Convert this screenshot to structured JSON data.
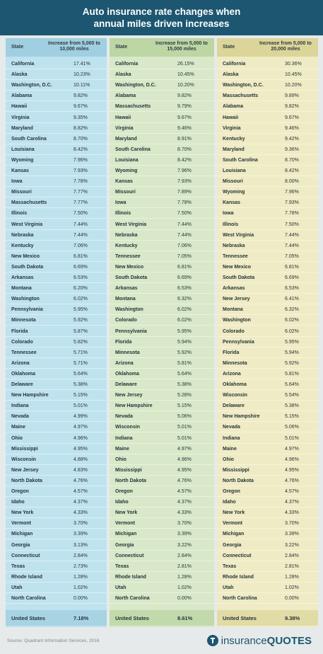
{
  "header": {
    "title_line1": "Auto insurance rate changes when",
    "title_line2": "annual miles driven increases"
  },
  "tables": [
    {
      "header": [
        "State",
        "Increase from 5,000 to 10,000 miles"
      ],
      "rows": [
        [
          "California",
          "17.41%"
        ],
        [
          "Alaska",
          "10.23%"
        ],
        [
          "Washington, D.C.",
          "10.11%"
        ],
        [
          "Alabama",
          "9.82%"
        ],
        [
          "Hawaii",
          "9.67%"
        ],
        [
          "Virginia",
          "9.35%"
        ],
        [
          "Maryland",
          "8.82%"
        ],
        [
          "South Carolina",
          "8.70%"
        ],
        [
          "Louisiana",
          "8.42%"
        ],
        [
          "Wyoming",
          "7.96%"
        ],
        [
          "Kansas",
          "7.93%"
        ],
        [
          "Iowa",
          "7.78%"
        ],
        [
          "Missouri",
          "7.77%"
        ],
        [
          "Massachusetts",
          "7.77%"
        ],
        [
          "Illinois",
          "7.50%"
        ],
        [
          "West Virginia",
          "7.44%"
        ],
        [
          "Nebraska",
          "7.44%"
        ],
        [
          "Kentucky",
          "7.06%"
        ],
        [
          "New Mexico",
          "6.81%"
        ],
        [
          "South Dakota",
          "6.69%"
        ],
        [
          "Arkansas",
          "6.53%"
        ],
        [
          "Montana",
          "6.20%"
        ],
        [
          "Washington",
          "6.02%"
        ],
        [
          "Pennsylvania",
          "5.95%"
        ],
        [
          "Minnesota",
          "5.92%"
        ],
        [
          "Florida",
          "5.87%"
        ],
        [
          "Colorado",
          "5.82%"
        ],
        [
          "Tennessee",
          "5.71%"
        ],
        [
          "Arizona",
          "5.71%"
        ],
        [
          "Oklahoma",
          "5.64%"
        ],
        [
          "Delaware",
          "5.38%"
        ],
        [
          "New Hampshire",
          "5.15%"
        ],
        [
          "Indiana",
          "5.01%"
        ],
        [
          "Nevada",
          "4.99%"
        ],
        [
          "Maine",
          "4.97%"
        ],
        [
          "Ohio",
          "4.96%"
        ],
        [
          "Mississippi",
          "4.95%"
        ],
        [
          "Wisconsin",
          "4.88%"
        ],
        [
          "New Jersey",
          "4.83%"
        ],
        [
          "North Dakota",
          "4.76%"
        ],
        [
          "Oregon",
          "4.57%"
        ],
        [
          "Idaho",
          "4.37%"
        ],
        [
          "New York",
          "4.33%"
        ],
        [
          "Vermont",
          "3.70%"
        ],
        [
          "Michigan",
          "3.39%"
        ],
        [
          "Georgia",
          "3.13%"
        ],
        [
          "Connecticut",
          "2.84%"
        ],
        [
          "Texas",
          "2.73%"
        ],
        [
          "Rhode Island",
          "1.28%"
        ],
        [
          "Utah",
          "1.02%"
        ],
        [
          "North Carolina",
          "0.00%"
        ]
      ],
      "total": [
        "United States",
        "7.18%"
      ]
    },
    {
      "header": [
        "State",
        "Increase from 5,000 to 15,000 miles"
      ],
      "rows": [
        [
          "California",
          "26.15%"
        ],
        [
          "Alaska",
          "10.45%"
        ],
        [
          "Washington, D.C.",
          "10.20%"
        ],
        [
          "Alabama",
          "9.82%"
        ],
        [
          "Massachusetts",
          "9.79%"
        ],
        [
          "Hawaii",
          "9.67%"
        ],
        [
          "Virginia",
          "9.46%"
        ],
        [
          "Maryland",
          "8.91%"
        ],
        [
          "South Carolina",
          "8.70%"
        ],
        [
          "Louisiana",
          "8.42%"
        ],
        [
          "Wyoming",
          "7.96%"
        ],
        [
          "Kansas",
          "7.93%"
        ],
        [
          "Missouri",
          "7.89%"
        ],
        [
          "Iowa",
          "7.78%"
        ],
        [
          "Illinois",
          "7.50%"
        ],
        [
          "West Virginia",
          "7.44%"
        ],
        [
          "Nebraska",
          "7.44%"
        ],
        [
          "Kentucky",
          "7.06%"
        ],
        [
          "Tennessee",
          "7.05%"
        ],
        [
          "New Mexico",
          "6.81%"
        ],
        [
          "South Dakota",
          "6.69%"
        ],
        [
          "Arkansas",
          "6.53%"
        ],
        [
          "Montana",
          "6.32%"
        ],
        [
          "Washington",
          "6.02%"
        ],
        [
          "Colorado",
          "6.02%"
        ],
        [
          "Pennsylvania",
          "5.95%"
        ],
        [
          "Florida",
          "5.94%"
        ],
        [
          "Minnesota",
          "5.92%"
        ],
        [
          "Arizona",
          "5.81%"
        ],
        [
          "Oklahoma",
          "5.64%"
        ],
        [
          "Delaware",
          "5.38%"
        ],
        [
          "New Jersey",
          "5.28%"
        ],
        [
          "New Hampshire",
          "5.15%"
        ],
        [
          "Nevada",
          "5.06%"
        ],
        [
          "Wisconsin",
          "5.01%"
        ],
        [
          "Indiana",
          "5.01%"
        ],
        [
          "Maine",
          "4.97%"
        ],
        [
          "Ohio",
          "4.96%"
        ],
        [
          "Mississippi",
          "4.95%"
        ],
        [
          "North Dakota",
          "4.76%"
        ],
        [
          "Oregon",
          "4.57%"
        ],
        [
          "Idaho",
          "4.37%"
        ],
        [
          "New York",
          "4.33%"
        ],
        [
          "Vermont",
          "3.70%"
        ],
        [
          "Michigan",
          "3.39%"
        ],
        [
          "Georgia",
          "3.22%"
        ],
        [
          "Connecticut",
          "2.84%"
        ],
        [
          "Texas",
          "2.81%"
        ],
        [
          "Rhode Island",
          "1.28%"
        ],
        [
          "Utah",
          "1.02%"
        ],
        [
          "North Carolina",
          "0.00%"
        ]
      ],
      "total": [
        "United States",
        "8.61%"
      ]
    },
    {
      "header": [
        "State",
        "Increase from 5,000 to 20,000 miles"
      ],
      "rows": [
        [
          "California",
          "30.36%"
        ],
        [
          "Alaska",
          "10.45%"
        ],
        [
          "Washington, D.C.",
          "10.20%"
        ],
        [
          "Massachusetts",
          "9.89%"
        ],
        [
          "Alabama",
          "9.82%"
        ],
        [
          "Hawaii",
          "9.67%"
        ],
        [
          "Virginia",
          "9.46%"
        ],
        [
          "Kentucky",
          "9.42%"
        ],
        [
          "Maryland",
          "9.36%"
        ],
        [
          "South Carolina",
          "8.70%"
        ],
        [
          "Louisiana",
          "8.42%"
        ],
        [
          "Missouri",
          "8.00%"
        ],
        [
          "Wyoming",
          "7.96%"
        ],
        [
          "Kansas",
          "7.93%"
        ],
        [
          "Iowa",
          "7.78%"
        ],
        [
          "Illinois",
          "7.50%"
        ],
        [
          "West Virginia",
          "7.44%"
        ],
        [
          "Nebraska",
          "7.44%"
        ],
        [
          "Tennessee",
          "7.05%"
        ],
        [
          "New Mexico",
          "6.81%"
        ],
        [
          "South Dakota",
          "6.69%"
        ],
        [
          "Arkansas",
          "6.53%"
        ],
        [
          "New Jersey",
          "6.41%"
        ],
        [
          "Montana",
          "6.32%"
        ],
        [
          "Washington",
          "6.02%"
        ],
        [
          "Colorado",
          "6.02%"
        ],
        [
          "Pennsylvania",
          "5.95%"
        ],
        [
          "Florida",
          "5.94%"
        ],
        [
          "Minnesota",
          "5.92%"
        ],
        [
          "Arizona",
          "5.81%"
        ],
        [
          "Oklahoma",
          "5.64%"
        ],
        [
          "Wisconsin",
          "5.54%"
        ],
        [
          "Delaware",
          "5.38%"
        ],
        [
          "New Hampshire",
          "5.15%"
        ],
        [
          "Nevada",
          "5.06%"
        ],
        [
          "Indiana",
          "5.01%"
        ],
        [
          "Maine",
          "4.97%"
        ],
        [
          "Ohio",
          "4.96%"
        ],
        [
          "Mississippi",
          "4.95%"
        ],
        [
          "North Dakota",
          "4.76%"
        ],
        [
          "Oregon",
          "4.57%"
        ],
        [
          "Idaho",
          "4.37%"
        ],
        [
          "New York",
          "4.33%"
        ],
        [
          "Vermont",
          "3.70%"
        ],
        [
          "Michigan",
          "3.39%"
        ],
        [
          "Georgia",
          "3.22%"
        ],
        [
          "Connecticut",
          "2.84%"
        ],
        [
          "Texas",
          "2.81%"
        ],
        [
          "Rhode Island",
          "1.28%"
        ],
        [
          "Utah",
          "1.02%"
        ],
        [
          "North Carolina",
          "0.00%"
        ]
      ],
      "total": [
        "United States",
        "9.38%"
      ]
    }
  ],
  "footer": {
    "source": "Source: Quadrant Information Services, 2016",
    "logo_part1": "insurance",
    "logo_part2": "QUOTES"
  }
}
